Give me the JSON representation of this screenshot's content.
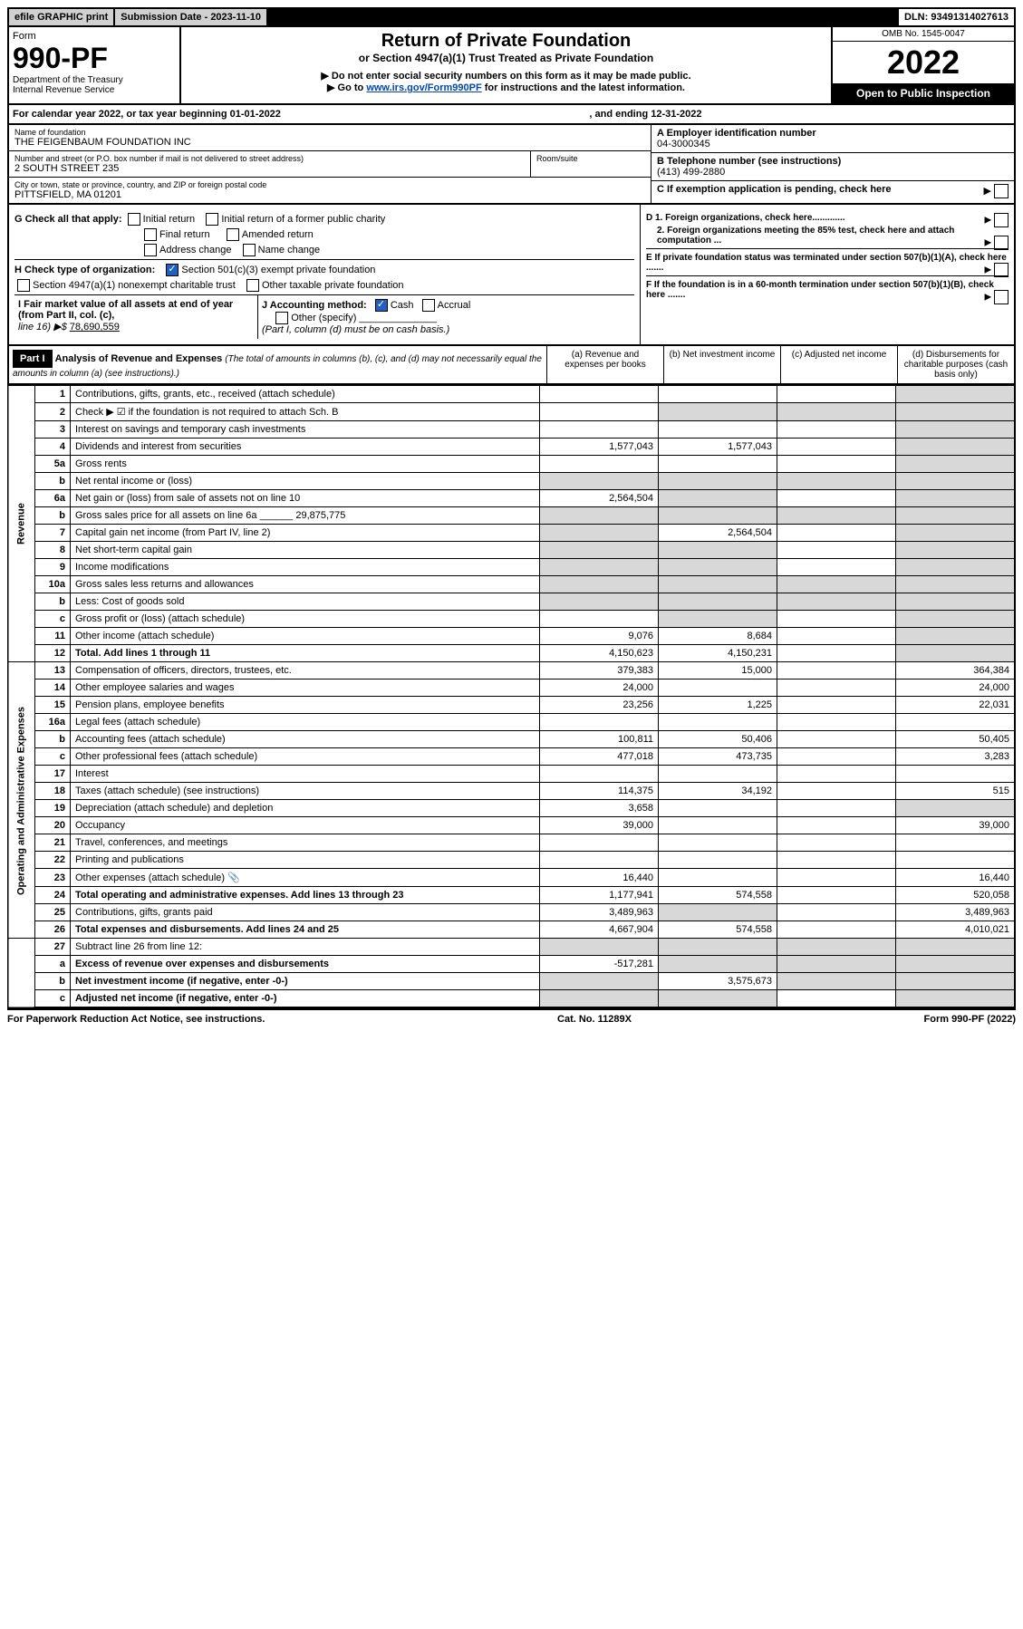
{
  "topbar": {
    "efile": "efile GRAPHIC print",
    "submission": "Submission Date - 2023-11-10",
    "dln": "DLN: 93491314027613"
  },
  "header": {
    "form_label": "Form",
    "form_number": "990-PF",
    "dept": "Department of the Treasury",
    "irs": "Internal Revenue Service",
    "title": "Return of Private Foundation",
    "subtitle": "or Section 4947(a)(1) Trust Treated as Private Foundation",
    "note1": "▶ Do not enter social security numbers on this form as it may be made public.",
    "note2_a": "▶ Go to ",
    "note2_link": "www.irs.gov/Form990PF",
    "note2_b": " for instructions and the latest information.",
    "omb": "OMB No. 1545-0047",
    "year": "2022",
    "inspect": "Open to Public Inspection"
  },
  "calendar": {
    "text_a": "For calendar year 2022, or tax year beginning 01-01-2022",
    "text_b": ", and ending 12-31-2022"
  },
  "foundation": {
    "name_label": "Name of foundation",
    "name": "THE FEIGENBAUM FOUNDATION INC",
    "addr_label": "Number and street (or P.O. box number if mail is not delivered to street address)",
    "addr": "2 SOUTH STREET 235",
    "room_label": "Room/suite",
    "city_label": "City or town, state or province, country, and ZIP or foreign postal code",
    "city": "PITTSFIELD, MA  01201",
    "ein_label": "A Employer identification number",
    "ein": "04-3000345",
    "phone_label": "B Telephone number (see instructions)",
    "phone": "(413) 499-2880",
    "c_label": "C If exemption application is pending, check here",
    "d1": "D 1. Foreign organizations, check here.............",
    "d2": "2. Foreign organizations meeting the 85% test, check here and attach computation ...",
    "e": "E  If private foundation status was terminated under section 507(b)(1)(A), check here .......",
    "f": "F  If the foundation is in a 60-month termination under section 507(b)(1)(B), check here ......."
  },
  "g": {
    "label": "G Check all that apply:",
    "opts": [
      "Initial return",
      "Initial return of a former public charity",
      "Final return",
      "Amended return",
      "Address change",
      "Name change"
    ]
  },
  "h": {
    "label": "H Check type of organization:",
    "o1": "Section 501(c)(3) exempt private foundation",
    "o2": "Section 4947(a)(1) nonexempt charitable trust",
    "o3": "Other taxable private foundation"
  },
  "i": {
    "label": "I Fair market value of all assets at end of year (from Part II, col. (c),",
    "line": "line 16) ▶$",
    "value": "78,690,559"
  },
  "j": {
    "label": "J Accounting method:",
    "cash": "Cash",
    "accrual": "Accrual",
    "other": "Other (specify)",
    "note": "(Part I, column (d) must be on cash basis.)"
  },
  "part1": {
    "label": "Part I",
    "title": "Analysis of Revenue and Expenses",
    "note": "(The total of amounts in columns (b), (c), and (d) may not necessarily equal the amounts in column (a) (see instructions).)",
    "col_a": "(a)  Revenue and expenses per books",
    "col_b": "(b)  Net investment income",
    "col_c": "(c)  Adjusted net income",
    "col_d": "(d)  Disbursements for charitable purposes (cash basis only)"
  },
  "sidelabels": {
    "revenue": "Revenue",
    "expenses": "Operating and Administrative Expenses"
  },
  "rows": [
    {
      "n": "1",
      "d": "Contributions, gifts, grants, etc., received (attach schedule)",
      "a": "",
      "b": "",
      "c": "",
      "dd": "",
      "agrey": false
    },
    {
      "n": "2",
      "d": "Check ▶ ☑ if the foundation is not required to attach Sch. B",
      "a": "",
      "b": "",
      "c": "",
      "dd": "",
      "bgrey": true,
      "cgrey": true,
      "dgrey": true
    },
    {
      "n": "3",
      "d": "Interest on savings and temporary cash investments",
      "a": "",
      "b": "",
      "c": "",
      "dd": ""
    },
    {
      "n": "4",
      "d": "Dividends and interest from securities",
      "a": "1,577,043",
      "b": "1,577,043",
      "c": "",
      "dd": ""
    },
    {
      "n": "5a",
      "d": "Gross rents",
      "a": "",
      "b": "",
      "c": "",
      "dd": ""
    },
    {
      "n": "b",
      "d": "Net rental income or (loss)",
      "a": "",
      "b": "",
      "c": "",
      "dd": "",
      "bgrey": true,
      "cgrey": true,
      "dgrey": true,
      "agrey": true
    },
    {
      "n": "6a",
      "d": "Net gain or (loss) from sale of assets not on line 10",
      "a": "2,564,504",
      "b": "",
      "c": "",
      "dd": "",
      "bgrey": true
    },
    {
      "n": "b",
      "d": "Gross sales price for all assets on line 6a ______ 29,875,775",
      "a": "",
      "b": "",
      "c": "",
      "dd": "",
      "agrey": true,
      "bgrey": true,
      "cgrey": true,
      "dgrey": true
    },
    {
      "n": "7",
      "d": "Capital gain net income (from Part IV, line 2)",
      "a": "",
      "b": "2,564,504",
      "c": "",
      "dd": "",
      "agrey": true
    },
    {
      "n": "8",
      "d": "Net short-term capital gain",
      "a": "",
      "b": "",
      "c": "",
      "dd": "",
      "agrey": true,
      "bgrey": true
    },
    {
      "n": "9",
      "d": "Income modifications",
      "a": "",
      "b": "",
      "c": "",
      "dd": "",
      "agrey": true,
      "bgrey": true
    },
    {
      "n": "10a",
      "d": "Gross sales less returns and allowances",
      "a": "",
      "b": "",
      "c": "",
      "dd": "",
      "agrey": true,
      "bgrey": true,
      "cgrey": true,
      "dgrey": true
    },
    {
      "n": "b",
      "d": "Less: Cost of goods sold",
      "a": "",
      "b": "",
      "c": "",
      "dd": "",
      "agrey": true,
      "bgrey": true,
      "cgrey": true,
      "dgrey": true
    },
    {
      "n": "c",
      "d": "Gross profit or (loss) (attach schedule)",
      "a": "",
      "b": "",
      "c": "",
      "dd": "",
      "bgrey": true
    },
    {
      "n": "11",
      "d": "Other income (attach schedule)",
      "a": "9,076",
      "b": "8,684",
      "c": "",
      "dd": ""
    },
    {
      "n": "12",
      "d": "Total. Add lines 1 through 11",
      "a": "4,150,623",
      "b": "4,150,231",
      "c": "",
      "dd": "",
      "bold": true
    }
  ],
  "exp_rows": [
    {
      "n": "13",
      "d": "Compensation of officers, directors, trustees, etc.",
      "a": "379,383",
      "b": "15,000",
      "c": "",
      "dd": "364,384"
    },
    {
      "n": "14",
      "d": "Other employee salaries and wages",
      "a": "24,000",
      "b": "",
      "c": "",
      "dd": "24,000"
    },
    {
      "n": "15",
      "d": "Pension plans, employee benefits",
      "a": "23,256",
      "b": "1,225",
      "c": "",
      "dd": "22,031"
    },
    {
      "n": "16a",
      "d": "Legal fees (attach schedule)",
      "a": "",
      "b": "",
      "c": "",
      "dd": ""
    },
    {
      "n": "b",
      "d": "Accounting fees (attach schedule)",
      "a": "100,811",
      "b": "50,406",
      "c": "",
      "dd": "50,405"
    },
    {
      "n": "c",
      "d": "Other professional fees (attach schedule)",
      "a": "477,018",
      "b": "473,735",
      "c": "",
      "dd": "3,283"
    },
    {
      "n": "17",
      "d": "Interest",
      "a": "",
      "b": "",
      "c": "",
      "dd": ""
    },
    {
      "n": "18",
      "d": "Taxes (attach schedule) (see instructions)",
      "a": "114,375",
      "b": "34,192",
      "c": "",
      "dd": "515"
    },
    {
      "n": "19",
      "d": "Depreciation (attach schedule) and depletion",
      "a": "3,658",
      "b": "",
      "c": "",
      "dd": "",
      "dgrey": true
    },
    {
      "n": "20",
      "d": "Occupancy",
      "a": "39,000",
      "b": "",
      "c": "",
      "dd": "39,000"
    },
    {
      "n": "21",
      "d": "Travel, conferences, and meetings",
      "a": "",
      "b": "",
      "c": "",
      "dd": ""
    },
    {
      "n": "22",
      "d": "Printing and publications",
      "a": "",
      "b": "",
      "c": "",
      "dd": ""
    },
    {
      "n": "23",
      "d": "Other expenses (attach schedule)",
      "a": "16,440",
      "b": "",
      "c": "",
      "dd": "16,440",
      "icon": true
    },
    {
      "n": "24",
      "d": "Total operating and administrative expenses. Add lines 13 through 23",
      "a": "1,177,941",
      "b": "574,558",
      "c": "",
      "dd": "520,058",
      "bold": true
    },
    {
      "n": "25",
      "d": "Contributions, gifts, grants paid",
      "a": "3,489,963",
      "b": "",
      "c": "",
      "dd": "3,489,963",
      "bgrey": true
    },
    {
      "n": "26",
      "d": "Total expenses and disbursements. Add lines 24 and 25",
      "a": "4,667,904",
      "b": "574,558",
      "c": "",
      "dd": "4,010,021",
      "bold": true
    }
  ],
  "bottom_rows": [
    {
      "n": "27",
      "d": "Subtract line 26 from line 12:",
      "a": "",
      "b": "",
      "c": "",
      "dd": "",
      "agrey": true,
      "bgrey": true,
      "cgrey": true,
      "dgrey": true
    },
    {
      "n": "a",
      "d": "Excess of revenue over expenses and disbursements",
      "a": "-517,281",
      "b": "",
      "c": "",
      "dd": "",
      "bold": true,
      "bgrey": true,
      "cgrey": true,
      "dgrey": true
    },
    {
      "n": "b",
      "d": "Net investment income (if negative, enter -0-)",
      "a": "",
      "b": "3,575,673",
      "c": "",
      "dd": "",
      "bold": true,
      "agrey": true,
      "cgrey": true,
      "dgrey": true
    },
    {
      "n": "c",
      "d": "Adjusted net income (if negative, enter -0-)",
      "a": "",
      "b": "",
      "c": "",
      "dd": "",
      "bold": true,
      "agrey": true,
      "bgrey": true,
      "dgrey": true
    }
  ],
  "footer": {
    "left": "For Paperwork Reduction Act Notice, see instructions.",
    "center": "Cat. No. 11289X",
    "right": "Form 990-PF (2022)"
  }
}
